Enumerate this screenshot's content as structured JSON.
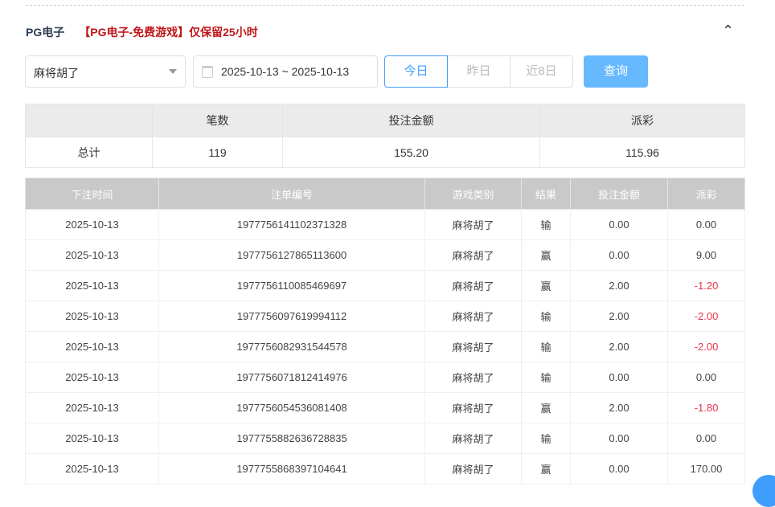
{
  "header": {
    "title": "PG电子",
    "notice": "【PG电子-免费游戏】仅保留25小时"
  },
  "filters": {
    "game": "麻将胡了",
    "date_range": "2025-10-13 ~ 2025-10-13",
    "ranges": [
      "今日",
      "昨日",
      "近8日"
    ],
    "active_range": "今日",
    "query": "查询"
  },
  "summary": {
    "headers": [
      "",
      "笔数",
      "投注金额",
      "派彩"
    ],
    "row": [
      "总计",
      "119",
      "155.20",
      "115.96"
    ]
  },
  "details": {
    "headers": [
      "下注时间",
      "注单编号",
      "游戏类别",
      "结果",
      "投注金额",
      "派彩"
    ],
    "rows": [
      [
        "2025-10-13",
        "1977756141102371328",
        "麻将胡了",
        "输",
        "0.00",
        "0.00"
      ],
      [
        "2025-10-13",
        "1977756127865113600",
        "麻将胡了",
        "赢",
        "0.00",
        "9.00"
      ],
      [
        "2025-10-13",
        "1977756110085469697",
        "麻将胡了",
        "赢",
        "2.00",
        "-1.20"
      ],
      [
        "2025-10-13",
        "1977756097619994112",
        "麻将胡了",
        "输",
        "2.00",
        "-2.00"
      ],
      [
        "2025-10-13",
        "1977756082931544578",
        "麻将胡了",
        "输",
        "2.00",
        "-2.00"
      ],
      [
        "2025-10-13",
        "1977756071812414976",
        "麻将胡了",
        "输",
        "0.00",
        "0.00"
      ],
      [
        "2025-10-13",
        "1977756054536081408",
        "麻将胡了",
        "赢",
        "2.00",
        "-1.80"
      ],
      [
        "2025-10-13",
        "1977755882636728835",
        "麻将胡了",
        "输",
        "0.00",
        "0.00"
      ],
      [
        "2025-10-13",
        "1977755868397104641",
        "麻将胡了",
        "赢",
        "0.00",
        "170.00"
      ]
    ]
  },
  "colors": {
    "accent": "#409eff",
    "negative": "#e8334a",
    "notice": "#c0161a"
  }
}
